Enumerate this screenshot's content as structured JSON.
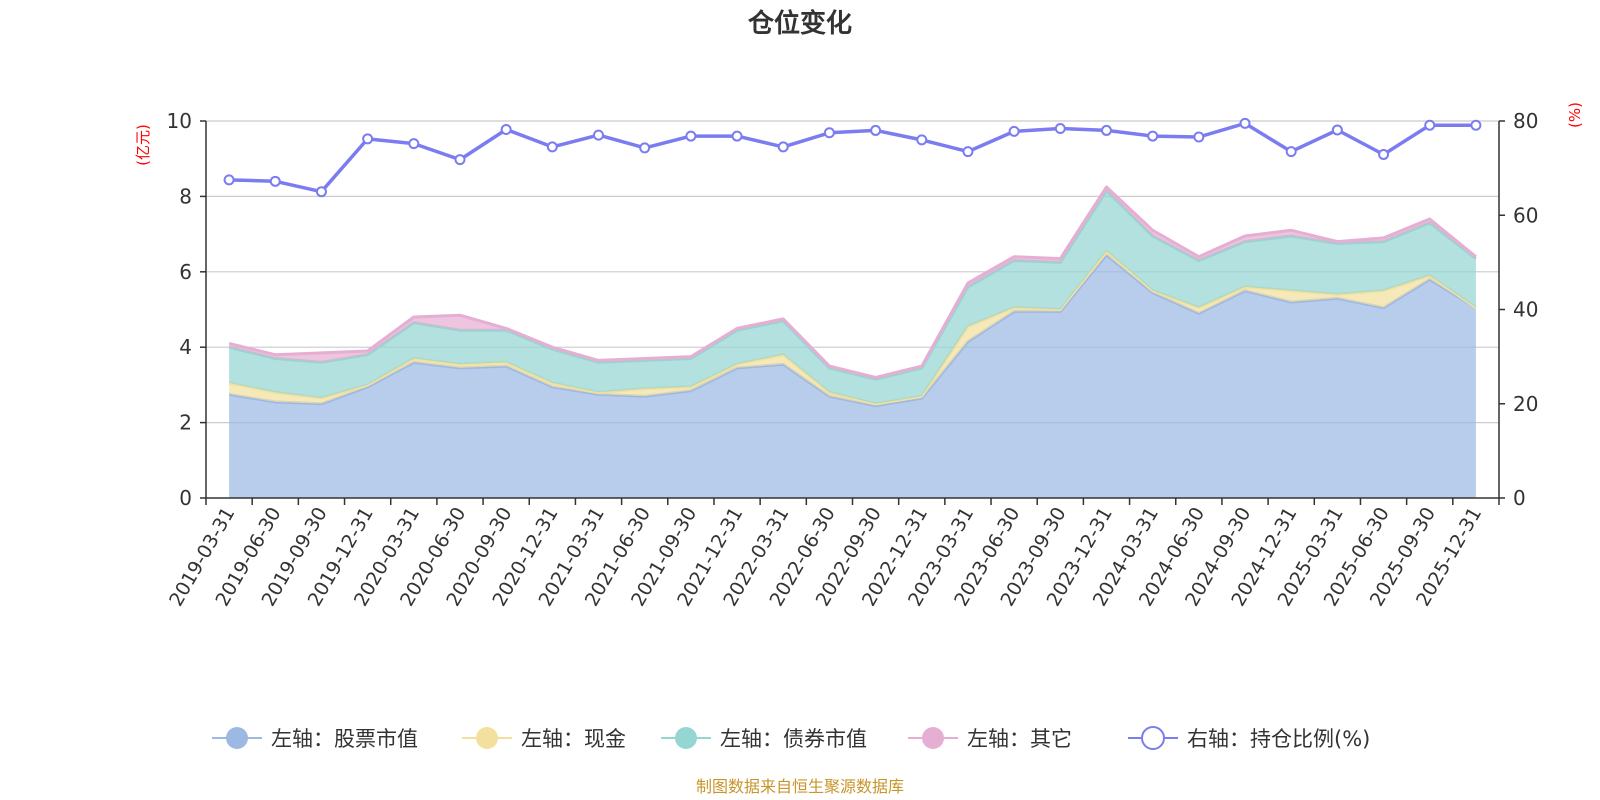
{
  "chart_data": {
    "type": "area",
    "title": "仓位变化",
    "left_unit": "(亿元)",
    "right_unit": "(%)",
    "left_ylim": [
      0,
      10
    ],
    "left_ticks": [
      "0",
      "2",
      "4",
      "6",
      "8",
      "10"
    ],
    "right_ylim": [
      0,
      80
    ],
    "right_ticks": [
      "0",
      "20",
      "40",
      "60",
      "80"
    ],
    "categories": [
      "2019-03-31",
      "2019-06-30",
      "2019-09-30",
      "2019-12-31",
      "2020-03-31",
      "2020-06-30",
      "2020-09-30",
      "2020-12-31",
      "2021-03-31",
      "2021-06-30",
      "2021-09-30",
      "2021-12-31",
      "2022-03-31",
      "2022-06-30",
      "2022-09-30",
      "2022-12-31",
      "2023-03-31",
      "2023-06-30",
      "2023-09-30",
      "2023-12-31",
      "2024-03-31",
      "2024-06-30",
      "2024-09-30",
      "2024-12-31",
      "2025-03-31",
      "2025-06-30",
      "2025-09-30",
      "2025-12-31"
    ],
    "series": [
      {
        "name": "左轴：股票市值",
        "axis": "left",
        "color": "#9db8e3",
        "values": [
          2.75,
          2.55,
          2.5,
          2.95,
          3.6,
          3.45,
          3.5,
          2.95,
          2.75,
          2.7,
          2.85,
          3.45,
          3.55,
          2.7,
          2.45,
          2.65,
          4.15,
          4.95,
          4.95,
          6.45,
          5.45,
          4.9,
          5.5,
          5.2,
          5.3,
          5.05,
          5.8,
          5.05
        ]
      },
      {
        "name": "左轴：现金",
        "axis": "left",
        "color": "#f3e09e",
        "values": [
          0.3,
          0.25,
          0.15,
          0.05,
          0.1,
          0.1,
          0.1,
          0.1,
          0.05,
          0.2,
          0.1,
          0.1,
          0.25,
          0.1,
          0.05,
          0.05,
          0.4,
          0.1,
          0.05,
          0.1,
          0.05,
          0.15,
          0.1,
          0.3,
          0.1,
          0.45,
          0.1,
          0.0
        ]
      },
      {
        "name": "左轴：债券市值",
        "axis": "left",
        "color": "#95d5d2",
        "values": [
          0.95,
          0.9,
          0.95,
          0.8,
          0.95,
          0.9,
          0.85,
          0.9,
          0.8,
          0.75,
          0.75,
          0.9,
          0.9,
          0.65,
          0.65,
          0.75,
          1.05,
          1.25,
          1.25,
          1.6,
          1.45,
          1.25,
          1.2,
          1.45,
          1.35,
          1.3,
          1.4,
          1.3
        ]
      },
      {
        "name": "左轴：其它",
        "axis": "left",
        "color": "#e6aed2",
        "values": [
          0.1,
          0.1,
          0.25,
          0.1,
          0.15,
          0.4,
          0.05,
          0.05,
          0.05,
          0.05,
          0.05,
          0.05,
          0.05,
          0.05,
          0.05,
          0.05,
          0.1,
          0.1,
          0.1,
          0.1,
          0.15,
          0.1,
          0.15,
          0.15,
          0.05,
          0.1,
          0.1,
          0.05
        ]
      },
      {
        "name": "右轴：持仓比例(%)",
        "axis": "right",
        "color": "#7b7cf0",
        "values": [
          67.5,
          67.2,
          65.0,
          76.2,
          75.2,
          71.8,
          78.2,
          74.5,
          77.0,
          74.3,
          76.8,
          76.8,
          74.5,
          77.5,
          78.0,
          76.0,
          73.5,
          77.8,
          78.4,
          78.0,
          76.8,
          76.6,
          79.5,
          73.5,
          78.1,
          72.9,
          79.1,
          79.1
        ]
      }
    ],
    "legend_position": "bottom",
    "grid": true
  },
  "source_note": "制图数据来自恒生聚源数据库",
  "colors": {
    "axis": "#333333",
    "grid": "#cccccc",
    "unit_label": "#ff0000",
    "source": "#c8952b"
  }
}
